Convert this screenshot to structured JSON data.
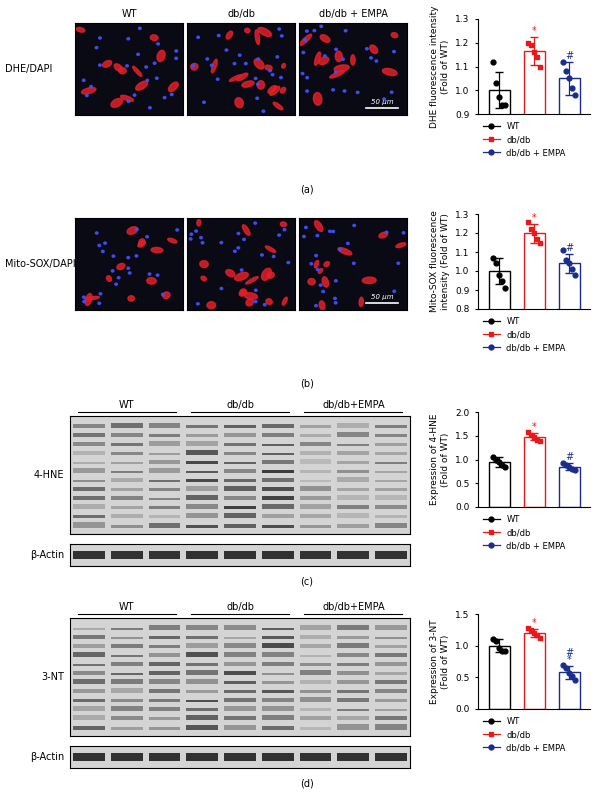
{
  "chart_data": [
    {
      "type": "bar",
      "ylabel": "DHE fluorescence intensity\n(Fold of WT)",
      "ylim": [
        0.9,
        1.3
      ],
      "yticks": [
        0.9,
        1.0,
        1.1,
        1.2,
        1.3
      ],
      "tick_labels": "y",
      "legend": "below",
      "series": [
        {
          "name": "WT",
          "color": "#000000",
          "marker": "o",
          "values": [
            1.0
          ],
          "error": [
            0.075
          ],
          "points": [
            [
              1.12,
              1.03,
              0.97,
              0.94,
              0.94
            ]
          ]
        },
        {
          "name": "db/db",
          "color": "#e8191b",
          "marker": "s",
          "values": [
            1.165
          ],
          "error": [
            0.06
          ],
          "points": [
            [
              1.2,
              1.19,
              1.16,
              1.14,
              1.1
            ]
          ],
          "annotations": [
            "*"
          ]
        },
        {
          "name": "db/db + EMPA",
          "color": "#1a2d8c",
          "marker": "o",
          "values": [
            1.05
          ],
          "error": [
            0.07
          ],
          "points": [
            [
              1.12,
              1.08,
              1.05,
              1.01,
              0.98
            ]
          ],
          "annotations": [
            "#"
          ]
        }
      ]
    },
    {
      "type": "bar",
      "ylabel": "Mito-SOX fluorescence\nintensity (Fold of WT)",
      "ylim": [
        0.8,
        1.3
      ],
      "yticks": [
        0.8,
        0.9,
        1.0,
        1.1,
        1.2,
        1.3
      ],
      "tick_labels": "y",
      "legend": "below",
      "series": [
        {
          "name": "WT",
          "color": "#000000",
          "marker": "o",
          "values": [
            1.0
          ],
          "error": [
            0.07
          ],
          "points": [
            [
              1.07,
              1.04,
              0.98,
              0.95,
              0.91
            ]
          ]
        },
        {
          "name": "db/db",
          "color": "#e8191b",
          "marker": "s",
          "values": [
            1.2
          ],
          "error": [
            0.05
          ],
          "points": [
            [
              1.26,
              1.22,
              1.2,
              1.17,
              1.15
            ]
          ],
          "annotations": [
            "*"
          ]
        },
        {
          "name": "db/db + EMPA",
          "color": "#1a2d8c",
          "marker": "o",
          "values": [
            1.04
          ],
          "error": [
            0.05
          ],
          "points": [
            [
              1.11,
              1.06,
              1.04,
              1.01,
              0.98
            ]
          ],
          "annotations": [
            "#"
          ]
        }
      ]
    },
    {
      "type": "bar",
      "ylabel": "Expression of 4-HNE\n(Fold of WT)",
      "ylim": [
        0.0,
        2.0
      ],
      "yticks": [
        0.0,
        0.5,
        1.0,
        1.5,
        2.0
      ],
      "tick_labels": "y",
      "legend": "below",
      "series": [
        {
          "name": "WT",
          "color": "#000000",
          "marker": "o",
          "values": [
            0.95
          ],
          "error": [
            0.1
          ],
          "points": [
            [
              1.05,
              1.0,
              0.95,
              0.88,
              0.85
            ]
          ]
        },
        {
          "name": "db/db",
          "color": "#e8191b",
          "marker": "s",
          "values": [
            1.48
          ],
          "error": [
            0.07
          ],
          "points": [
            [
              1.58,
              1.52,
              1.48,
              1.42,
              1.4
            ]
          ],
          "annotations": [
            "*"
          ]
        },
        {
          "name": "db/db + EMPA",
          "color": "#1a2d8c",
          "marker": "o",
          "values": [
            0.85
          ],
          "error": [
            0.07
          ],
          "points": [
            [
              0.93,
              0.88,
              0.85,
              0.8,
              0.78
            ]
          ],
          "annotations": [
            "#"
          ]
        }
      ]
    },
    {
      "type": "bar",
      "ylabel": "Expression of 3-NT\n(Fold of WT)",
      "ylim": [
        0.0,
        1.5
      ],
      "yticks": [
        0.0,
        0.5,
        1.0,
        1.5
      ],
      "tick_labels": "y",
      "legend": "below",
      "series": [
        {
          "name": "WT",
          "color": "#000000",
          "marker": "o",
          "values": [
            1.0
          ],
          "error": [
            0.1
          ],
          "points": [
            [
              1.1,
              1.08,
              0.97,
              0.92,
              0.92
            ]
          ]
        },
        {
          "name": "db/db",
          "color": "#e8191b",
          "marker": "s",
          "values": [
            1.2
          ],
          "error": [
            0.06
          ],
          "points": [
            [
              1.28,
              1.24,
              1.2,
              1.17,
              1.12
            ]
          ],
          "annotations": [
            "*"
          ]
        },
        {
          "name": "db/db + EMPA",
          "color": "#1a2d8c",
          "marker": "o",
          "values": [
            0.58
          ],
          "error": [
            0.1
          ],
          "points": [
            [
              0.7,
              0.65,
              0.57,
              0.52,
              0.46
            ]
          ],
          "annotations": [
            "#",
            "*"
          ]
        }
      ]
    }
  ],
  "images": [
    {
      "kind": "micrograph",
      "row_label": "DHE/DAPI",
      "columns": [
        "WT",
        "db/db",
        "db/db + EMPA"
      ],
      "scale_bar": "50 μm"
    },
    {
      "kind": "micrograph",
      "row_label": "Mito-SOX/DAPI",
      "scale_bar": "50 μm"
    },
    {
      "kind": "blot",
      "groups": [
        "WT",
        "db/db",
        "db/db+EMPA"
      ],
      "rows": [
        "4-HNE",
        "β-Actin"
      ]
    },
    {
      "kind": "blot",
      "groups": [
        "WT",
        "db/db",
        "db/db+EMPA"
      ],
      "rows": [
        "3-NT",
        "β-Actin"
      ]
    }
  ],
  "panel_labels": [
    "(a)",
    "(b)",
    "(c)",
    "(d)"
  ]
}
